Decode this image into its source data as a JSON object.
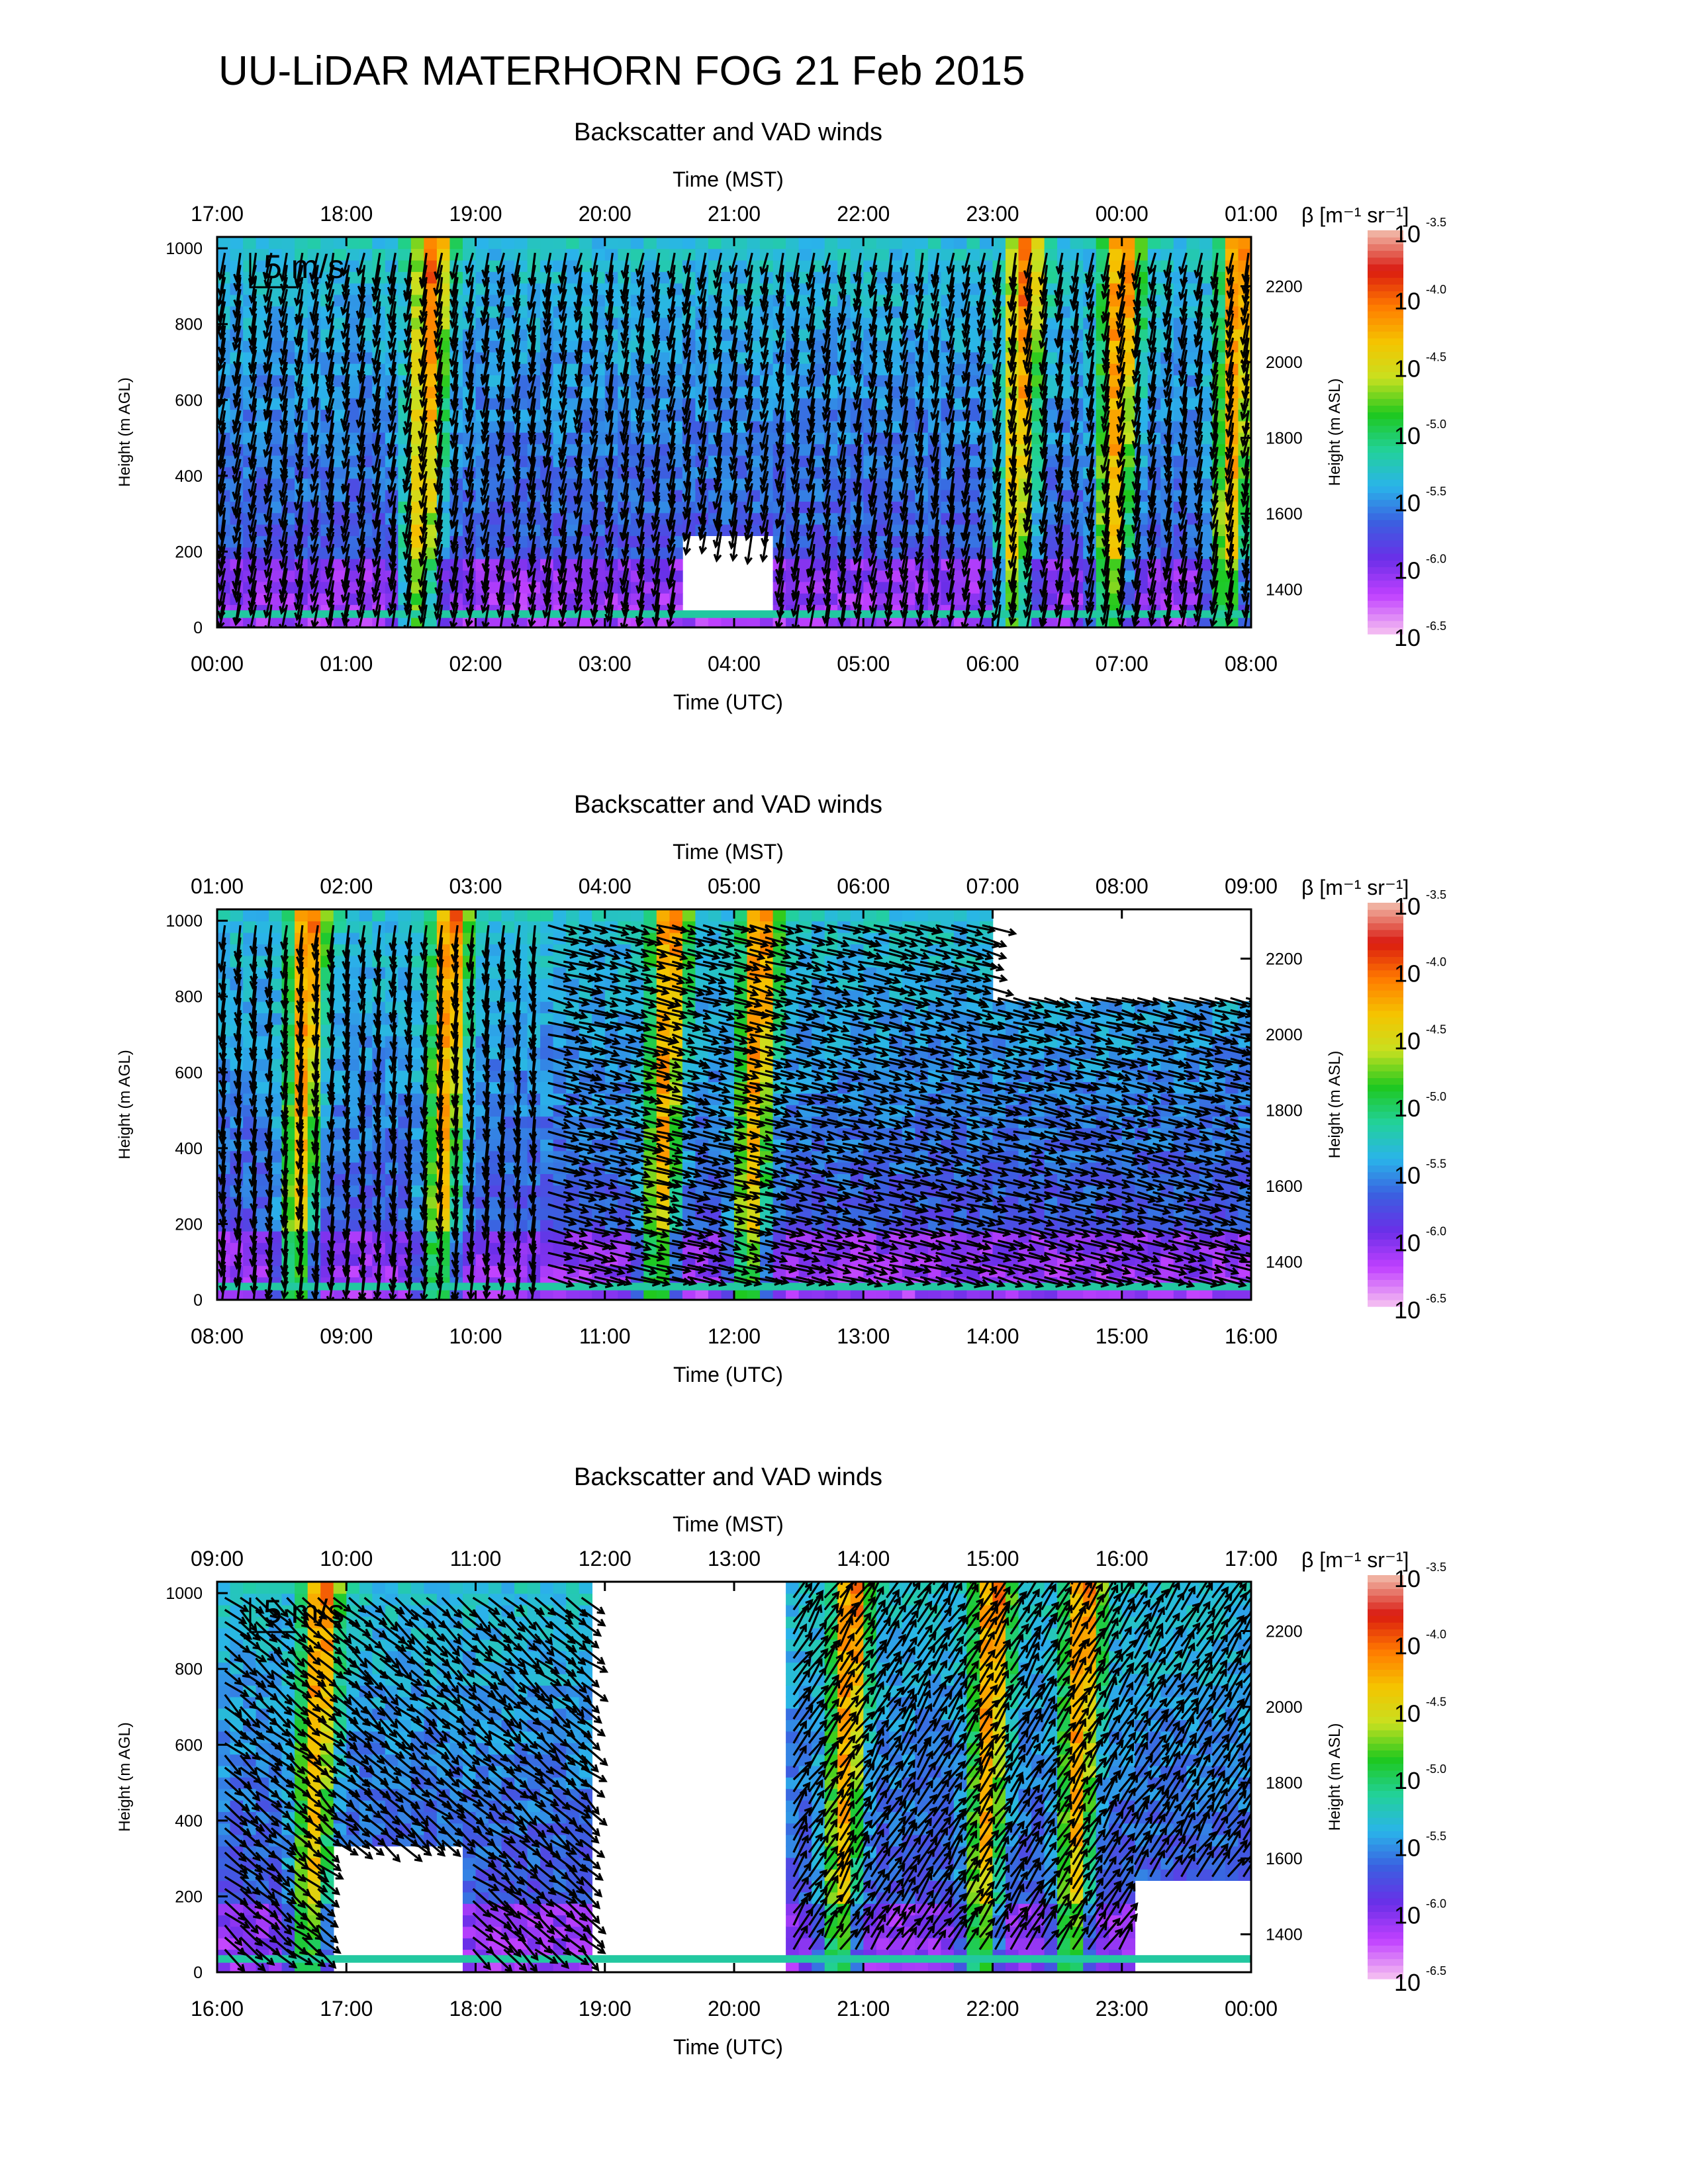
{
  "figure": {
    "title": "UU-LiDAR MATERHORN FOG  21 Feb 2015"
  },
  "scale_arrow_label": "5 m/s",
  "colors": {
    "colormap": [
      "#f2b8f2",
      "#c040ff",
      "#6a2fe8",
      "#3b5fe0",
      "#2ab4ea",
      "#22d19a",
      "#1ec81e",
      "#c8e020",
      "#f5c400",
      "#ff7a00",
      "#d91a10",
      "#f0b0a0"
    ],
    "ground_band": "#22c8a0",
    "arrow": "#000000"
  },
  "colorbar": {
    "label": "β [m⁻¹ sr⁻¹]",
    "tick_base": "10",
    "tick_exponents": [
      "-3.5",
      "-4.0",
      "-4.5",
      "-5.0",
      "-5.5",
      "-6.0",
      "-6.5"
    ],
    "log_range": [
      -6.5,
      -3.5
    ]
  },
  "chart_data": [
    {
      "type": "heatmap",
      "title": "Backscatter and VAD winds",
      "xlabel_bottom": "Time (UTC)",
      "xlabel_top": "Time (MST)",
      "ylabel_left": "Height (m AGL)",
      "ylabel_right": "Height (m ASL)",
      "x_ticks_utc": [
        "00:00",
        "01:00",
        "02:00",
        "03:00",
        "04:00",
        "05:00",
        "06:00",
        "07:00",
        "08:00"
      ],
      "x_ticks_mst": [
        "17:00",
        "18:00",
        "19:00",
        "20:00",
        "21:00",
        "22:00",
        "23:00",
        "00:00",
        "01:00"
      ],
      "y_ticks_agl": [
        "0",
        "200",
        "400",
        "600",
        "800",
        "1000"
      ],
      "y_ticks_asl": [
        "1400",
        "1600",
        "1800",
        "2000",
        "2200"
      ],
      "ylim_agl": [
        0,
        1030
      ],
      "ylim_asl": [
        1300,
        2330
      ],
      "xlim_utc_hours": [
        0,
        8
      ],
      "show_scale_arrow": true,
      "plume_x_hours": [
        1.55,
        6.15,
        6.9,
        7.8
      ],
      "clear_regions": [
        {
          "x_hours": [
            3.6,
            4.3
          ],
          "height_m": [
            40,
            250
          ]
        }
      ],
      "wind_regime": [
        {
          "x_hours": [
            0,
            8
          ],
          "u_ms": -0.6,
          "v_ms": -3.2
        }
      ]
    },
    {
      "type": "heatmap",
      "title": "Backscatter and VAD winds",
      "xlabel_bottom": "Time (UTC)",
      "xlabel_top": "Time (MST)",
      "ylabel_left": "Height (m AGL)",
      "ylabel_right": "Height (m ASL)",
      "x_ticks_utc": [
        "08:00",
        "09:00",
        "10:00",
        "11:00",
        "12:00",
        "13:00",
        "14:00",
        "15:00",
        "16:00"
      ],
      "x_ticks_mst": [
        "01:00",
        "02:00",
        "03:00",
        "04:00",
        "05:00",
        "06:00",
        "07:00",
        "08:00",
        "09:00"
      ],
      "y_ticks_agl": [
        "0",
        "200",
        "400",
        "600",
        "800",
        "1000"
      ],
      "y_ticks_asl": [
        "1400",
        "1600",
        "1800",
        "2000",
        "2200"
      ],
      "ylim_agl": [
        0,
        1030
      ],
      "ylim_asl": [
        1300,
        2330
      ],
      "xlim_utc_hours": [
        8,
        16
      ],
      "show_scale_arrow": false,
      "plume_x_hours": [
        8.6,
        9.7,
        11.4,
        12.1
      ],
      "clear_regions": [
        {
          "x_hours": [
            14.0,
            16.0
          ],
          "height_m": [
            800,
            1030
          ]
        }
      ],
      "wind_regime": [
        {
          "x_hours": [
            8,
            10.5
          ],
          "u_ms": -0.4,
          "v_ms": -3.4
        },
        {
          "x_hours": [
            10.5,
            16
          ],
          "u_ms": 3.4,
          "v_ms": -0.9
        }
      ]
    },
    {
      "type": "heatmap",
      "title": "Backscatter and VAD winds",
      "xlabel_bottom": "Time (UTC)",
      "xlabel_top": "Time (MST)",
      "ylabel_left": "Height (m AGL)",
      "ylabel_right": "Height (m ASL)",
      "x_ticks_utc": [
        "16:00",
        "17:00",
        "18:00",
        "19:00",
        "20:00",
        "21:00",
        "22:00",
        "23:00",
        "00:00"
      ],
      "x_ticks_mst": [
        "09:00",
        "10:00",
        "11:00",
        "12:00",
        "13:00",
        "14:00",
        "15:00",
        "16:00",
        "17:00"
      ],
      "y_ticks_agl": [
        "0",
        "200",
        "400",
        "600",
        "800",
        "1000"
      ],
      "y_ticks_asl": [
        "1400",
        "1600",
        "1800",
        "2000",
        "2200"
      ],
      "ylim_agl": [
        0,
        1030
      ],
      "ylim_asl": [
        1300,
        2330
      ],
      "xlim_utc_hours": [
        16,
        24
      ],
      "show_scale_arrow": true,
      "plume_x_hours": [
        16.7,
        20.8,
        21.9,
        22.6
      ],
      "clear_regions": [
        {
          "x_hours": [
            16.9,
            17.9
          ],
          "height_m": [
            0,
            320
          ]
        },
        {
          "x_hours": [
            18.9,
            20.4
          ],
          "height_m": [
            0,
            1030
          ]
        },
        {
          "x_hours": [
            23.1,
            24.0
          ],
          "height_m": [
            0,
            250
          ]
        }
      ],
      "wind_regime": [
        {
          "x_hours": [
            16,
            19
          ],
          "u_ms": 2.6,
          "v_ms": -2.2
        },
        {
          "x_hours": [
            20.4,
            24
          ],
          "u_ms": 1.9,
          "v_ms": 2.9
        }
      ]
    }
  ]
}
